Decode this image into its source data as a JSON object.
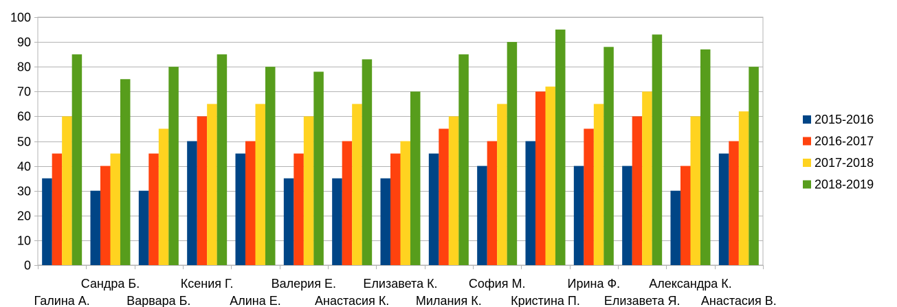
{
  "chart_data": {
    "type": "bar",
    "title": "",
    "xlabel": "",
    "ylabel": "",
    "ylim": [
      0,
      100
    ],
    "yticks": [
      0,
      10,
      20,
      30,
      40,
      50,
      60,
      70,
      80,
      90,
      100
    ],
    "grid": true,
    "legend_position": "right",
    "categories": [
      "Галина А.",
      "Сандра Б.",
      "Варвара Б.",
      "Ксения Г.",
      "Алина Е.",
      "Валерия Е.",
      "Анастасия К.",
      "Елизавета К.",
      "Милания К.",
      "София М.",
      "Кристина П.",
      "Ирина Ф.",
      "Елизавета Я.",
      "Александра К.",
      "Анастасия В."
    ],
    "series": [
      {
        "name": "2015-2016",
        "color": "#004586",
        "values": [
          35,
          30,
          30,
          50,
          45,
          35,
          35,
          35,
          45,
          40,
          50,
          40,
          40,
          30,
          45
        ]
      },
      {
        "name": "2016-2017",
        "color": "#ff420e",
        "values": [
          45,
          40,
          45,
          60,
          50,
          45,
          50,
          45,
          55,
          50,
          70,
          55,
          60,
          40,
          50
        ]
      },
      {
        "name": "2017-2018",
        "color": "#ffd320",
        "values": [
          60,
          45,
          55,
          65,
          65,
          60,
          65,
          50,
          60,
          65,
          72,
          65,
          70,
          60,
          62
        ]
      },
      {
        "name": "2018-2019",
        "color": "#579d1c",
        "values": [
          85,
          75,
          80,
          85,
          80,
          78,
          83,
          70,
          85,
          90,
          95,
          88,
          93,
          87,
          80
        ]
      }
    ]
  }
}
